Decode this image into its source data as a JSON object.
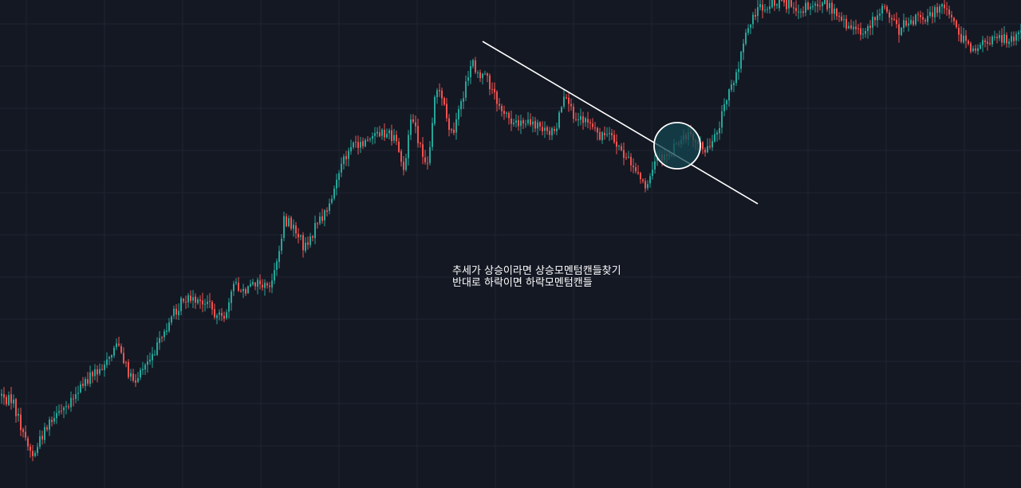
{
  "chart_data": {
    "type": "candlestick",
    "title": "",
    "xlabel": "",
    "ylabel": "",
    "grid": true,
    "ylim": [
      0,
      613
    ],
    "colors": {
      "background": "#141823",
      "grid": "#1f2431",
      "up": "#26a69a",
      "down": "#ef5350",
      "trendline": "#ffffff",
      "highlight_fill": "#134550",
      "highlight_stroke": "#ffffff"
    },
    "anchors": [
      [
        0,
        497
      ],
      [
        15,
        505
      ],
      [
        28,
        545
      ],
      [
        40,
        575
      ],
      [
        55,
        540
      ],
      [
        70,
        525
      ],
      [
        85,
        505
      ],
      [
        105,
        480
      ],
      [
        120,
        465
      ],
      [
        135,
        455
      ],
      [
        145,
        430
      ],
      [
        155,
        460
      ],
      [
        168,
        478
      ],
      [
        185,
        452
      ],
      [
        200,
        430
      ],
      [
        215,
        395
      ],
      [
        230,
        375
      ],
      [
        245,
        382
      ],
      [
        260,
        378
      ],
      [
        270,
        395
      ],
      [
        280,
        405
      ],
      [
        290,
        355
      ],
      [
        305,
        370
      ],
      [
        320,
        355
      ],
      [
        335,
        362
      ],
      [
        345,
        340
      ],
      [
        355,
        275
      ],
      [
        370,
        290
      ],
      [
        380,
        310
      ],
      [
        395,
        285
      ],
      [
        410,
        262
      ],
      [
        425,
        215
      ],
      [
        440,
        180
      ],
      [
        455,
        180
      ],
      [
        470,
        170
      ],
      [
        485,
        168
      ],
      [
        495,
        178
      ],
      [
        505,
        215
      ],
      [
        515,
        145
      ],
      [
        525,
        185
      ],
      [
        535,
        210
      ],
      [
        545,
        110
      ],
      [
        555,
        130
      ],
      [
        565,
        170
      ],
      [
        575,
        140
      ],
      [
        590,
        75
      ],
      [
        600,
        95
      ],
      [
        610,
        100
      ],
      [
        625,
        130
      ],
      [
        640,
        155
      ],
      [
        660,
        150
      ],
      [
        680,
        160
      ],
      [
        695,
        168
      ],
      [
        705,
        125
      ],
      [
        720,
        145
      ],
      [
        735,
        150
      ],
      [
        750,
        168
      ],
      [
        765,
        175
      ],
      [
        780,
        190
      ],
      [
        795,
        215
      ],
      [
        808,
        235
      ],
      [
        820,
        200
      ],
      [
        835,
        198
      ],
      [
        850,
        178
      ],
      [
        865,
        165
      ],
      [
        880,
        190
      ],
      [
        895,
        175
      ],
      [
        905,
        140
      ],
      [
        915,
        110
      ],
      [
        925,
        80
      ],
      [
        935,
        40
      ],
      [
        945,
        15
      ],
      [
        960,
        8
      ],
      [
        975,
        2
      ],
      [
        990,
        5
      ],
      [
        1005,
        12
      ],
      [
        1020,
        3
      ],
      [
        1035,
        5
      ],
      [
        1050,
        18
      ],
      [
        1065,
        35
      ],
      [
        1080,
        45
      ],
      [
        1095,
        20
      ],
      [
        1110,
        10
      ],
      [
        1125,
        38
      ],
      [
        1140,
        25
      ],
      [
        1155,
        22
      ],
      [
        1170,
        15
      ],
      [
        1185,
        10
      ],
      [
        1200,
        40
      ],
      [
        1215,
        65
      ],
      [
        1230,
        55
      ],
      [
        1245,
        48
      ],
      [
        1260,
        50
      ],
      [
        1280,
        42
      ]
    ],
    "trendline": {
      "x1": 605,
      "y1": 52,
      "x2": 950,
      "y2": 256
    },
    "highlight_circle": {
      "cx": 849,
      "cy": 183,
      "r": 29
    }
  },
  "annotation": {
    "line1": "추세가 상승이라면 상승모멘텀캔들찾기",
    "line2": "반대로 하락이면 하락모멘텀캔들"
  }
}
